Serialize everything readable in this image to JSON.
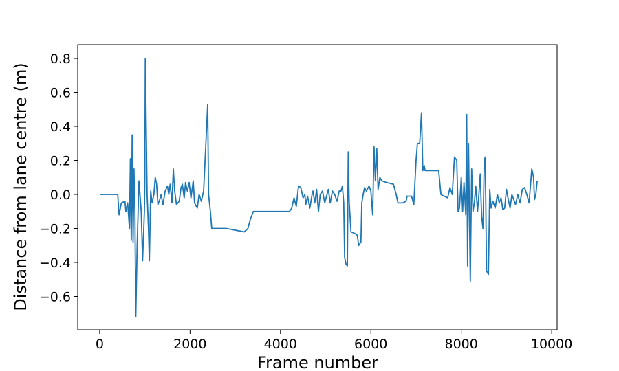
{
  "chart_data": {
    "type": "line",
    "x_label": "Frame number",
    "y_label": "Distance from lane centre (m)",
    "xlim": [
      -485,
      10120
    ],
    "ylim": [
      -0.796,
      0.881
    ],
    "xticks": [
      0,
      2000,
      4000,
      6000,
      8000,
      10000
    ],
    "yticks": [
      {
        "value": -0.6,
        "label": "−0.6"
      },
      {
        "value": -0.4,
        "label": "−0.4"
      },
      {
        "value": -0.2,
        "label": "−0.2"
      },
      {
        "value": 0,
        "label": "0.0"
      },
      0.2,
      0.4,
      0.6,
      0.8
    ],
    "grid": false,
    "series": [
      {
        "color": "#1f77b4",
        "x": [
          0,
          400,
          430,
          480,
          560,
          580,
          620,
          660,
          680,
          700,
          720,
          740,
          760,
          780,
          800,
          830,
          870,
          920,
          950,
          990,
          1000,
          1010,
          1050,
          1080,
          1100,
          1130,
          1160,
          1200,
          1230,
          1260,
          1290,
          1330,
          1360,
          1400,
          1450,
          1500,
          1530,
          1560,
          1600,
          1630,
          1660,
          1700,
          1760,
          1800,
          1830,
          1870,
          1900,
          1940,
          1980,
          2020,
          2070,
          2100,
          2160,
          2200,
          2250,
          2300,
          2350,
          2390,
          2410,
          2450,
          2480,
          2800,
          3000,
          3200,
          3280,
          3330,
          3400,
          4200,
          4250,
          4300,
          4350,
          4400,
          4450,
          4500,
          4540,
          4560,
          4600,
          4650,
          4700,
          4720,
          4760,
          4800,
          4840,
          4880,
          4930,
          4980,
          5020,
          5060,
          5100,
          5150,
          5200,
          5250,
          5300,
          5340,
          5370,
          5400,
          5420,
          5450,
          5480,
          5500,
          5520,
          5560,
          5650,
          5700,
          5730,
          5780,
          5800,
          5830,
          5860,
          5900,
          5960,
          6000,
          6040,
          6070,
          6100,
          6130,
          6160,
          6200,
          6240,
          6350,
          6500,
          6560,
          6600,
          6700,
          6780,
          6800,
          6900,
          6950,
          7000,
          7030,
          7080,
          7120,
          7150,
          7180,
          7200,
          7500,
          7550,
          7620,
          7700,
          7750,
          7800,
          7850,
          7900,
          7930,
          7960,
          8000,
          8030,
          8060,
          8100,
          8120,
          8140,
          8160,
          8200,
          8230,
          8260,
          8290,
          8320,
          8360,
          8390,
          8420,
          8450,
          8480,
          8510,
          8530,
          8560,
          8600,
          8630,
          8660,
          8700,
          8750,
          8800,
          8840,
          8880,
          8920,
          8960,
          9000,
          9040,
          9080,
          9120,
          9160,
          9200,
          9250,
          9300,
          9350,
          9400,
          9450,
          9500,
          9560,
          9600,
          9620,
          9650,
          9680
        ],
        "values": [
          0,
          0,
          -0.12,
          -0.05,
          -0.04,
          -0.1,
          -0.05,
          -0.2,
          0.21,
          -0.27,
          0.35,
          -0.28,
          0.15,
          -0.1,
          -0.72,
          -0.3,
          0.08,
          -0.1,
          -0.39,
          -0.1,
          0.1,
          0.8,
          0.0,
          -0.2,
          -0.39,
          0.02,
          -0.05,
          0.0,
          0.1,
          0.06,
          -0.06,
          -0.03,
          0.0,
          -0.06,
          0.02,
          0.05,
          0.0,
          0.06,
          -0.05,
          0.15,
          0.02,
          -0.06,
          -0.04,
          0.04,
          0.06,
          -0.02,
          0.07,
          0.02,
          0.07,
          -0.02,
          0.08,
          -0.05,
          -0.08,
          0.0,
          -0.04,
          0.02,
          0.3,
          0.53,
          0.0,
          -0.1,
          -0.2,
          -0.2,
          -0.21,
          -0.22,
          -0.2,
          -0.15,
          -0.1,
          -0.1,
          -0.08,
          -0.02,
          -0.07,
          0.05,
          0.04,
          -0.02,
          0.0,
          -0.06,
          -0.01,
          -0.08,
          0.0,
          0.02,
          -0.05,
          0.03,
          -0.1,
          0.0,
          0.02,
          -0.05,
          -0.01,
          0.03,
          -0.05,
          0.02,
          0.0,
          -0.04,
          0.02,
          0.02,
          0.05,
          -0.05,
          -0.37,
          -0.41,
          -0.42,
          0.25,
          -0.04,
          -0.22,
          -0.23,
          -0.24,
          -0.3,
          -0.28,
          -0.05,
          0.0,
          0.04,
          0.02,
          0.05,
          0.02,
          -0.12,
          0.28,
          0.08,
          0.27,
          0.03,
          0.1,
          0.08,
          0.07,
          0.06,
          0.0,
          -0.05,
          -0.05,
          -0.04,
          -0.01,
          -0.01,
          -0.06,
          0.2,
          0.3,
          0.3,
          0.48,
          0.14,
          0.17,
          0.14,
          0.14,
          0.0,
          -0.01,
          -0.02,
          0.04,
          0.0,
          0.22,
          0.2,
          -0.1,
          -0.08,
          0.1,
          -0.1,
          0.07,
          -0.12,
          0.47,
          -0.42,
          0.3,
          -0.51,
          0.15,
          -0.1,
          -0.05,
          0.05,
          -0.1,
          0.0,
          0.12,
          -0.13,
          -0.2,
          0.2,
          0.22,
          -0.45,
          -0.47,
          0.03,
          -0.08,
          -0.04,
          -0.08,
          0.0,
          -0.05,
          -0.02,
          -0.09,
          -0.08,
          0.03,
          -0.03,
          -0.08,
          0.0,
          -0.03,
          -0.06,
          0.0,
          -0.05,
          0.03,
          0.04,
          0.0,
          -0.05,
          0.15,
          0.1,
          -0.03,
          0.0,
          0.08
        ]
      }
    ]
  }
}
